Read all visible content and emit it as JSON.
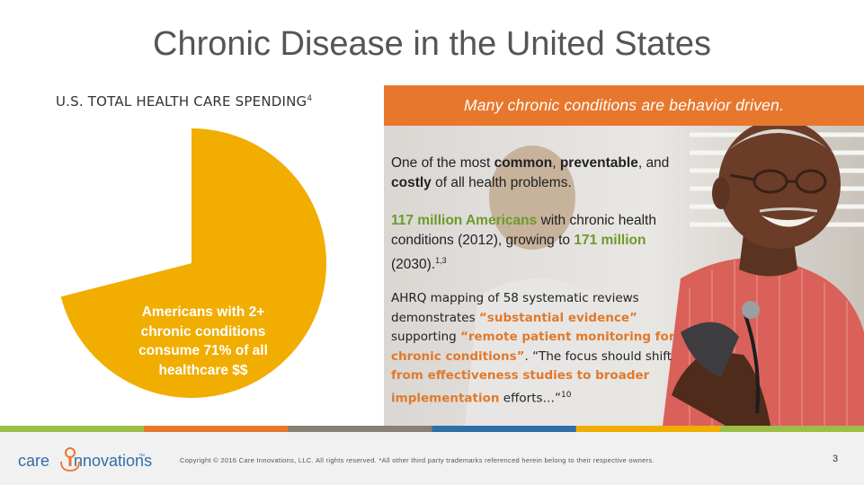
{
  "slide": {
    "title": "Chronic Disease in the United States",
    "page_number": "3"
  },
  "left": {
    "heading": "U.S. TOTAL HEALTH CARE SPENDING",
    "heading_sup": "4",
    "pie_label": "Americans with 2+ chronic conditions consume 71% of all healthcare $$"
  },
  "chart_data": {
    "type": "pie",
    "slices": [
      {
        "label": "Americans with 2+ chronic conditions",
        "value": 71,
        "color": "#f1ad00"
      },
      {
        "label": "",
        "value": 29,
        "color": "#ffffff"
      }
    ]
  },
  "banner": {
    "text": "Many chronic conditions are behavior driven.",
    "color": "#e8772e"
  },
  "block1": {
    "p1": "One of the most ",
    "b1": "common",
    "p2": ", ",
    "b2": "preventable",
    "p3": ", and ",
    "b3": "costly",
    "p4": " of all health problems."
  },
  "block2": {
    "g1": "117 million Americans",
    "p1": " with chronic health conditions (2012), growing to ",
    "g2": "171 million",
    "p2": " (2030).",
    "sup": "1,3"
  },
  "block3": {
    "p1": "AHRQ mapping of 58 systematic reviews demonstrates ",
    "o1": "“substantial evidence”",
    "p2": " supporting ",
    "o2": "“remote patient monitoring for chronic conditions”",
    "p3": ". “The focus should shift ",
    "o3": "from effectiveness studies to broader implementation",
    "p4": " efforts…”",
    "sup": "10"
  },
  "footer": {
    "logo_left": "care",
    "logo_right": "nnovations",
    "logo_mark": "™",
    "copyright": "Copyright © 2016 Care Innovations, LLC. All rights reserved. *All other third party trademarks referenced herein belong to their respective owners."
  },
  "colors": {
    "stripe": [
      "#9cbe48",
      "#e8772e",
      "#8a7f75",
      "#2f6fa7",
      "#f1ad00",
      "#9cbe48"
    ]
  }
}
